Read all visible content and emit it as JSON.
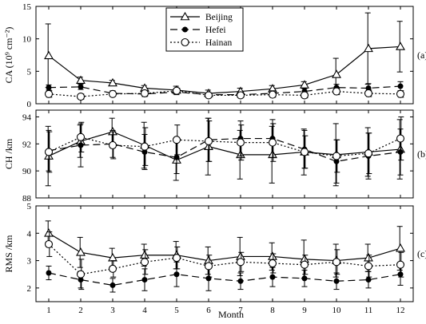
{
  "chart_data": {
    "type": "line",
    "xlabel": "Month",
    "x": [
      1,
      2,
      3,
      4,
      5,
      6,
      7,
      8,
      9,
      10,
      11,
      12
    ],
    "xlim": [
      0.6,
      12.4
    ],
    "legend": {
      "placement": "top-center",
      "entries": [
        "Beijing",
        "Hefei",
        "Hainan"
      ]
    },
    "colors": {
      "line": "#000000"
    },
    "panels": [
      {
        "panel_label": "(a)",
        "ylabel": "CA (10⁹ cm⁻²)",
        "ylim": [
          0,
          15
        ],
        "yticks": [
          0,
          5,
          10,
          15
        ],
        "series": [
          {
            "name": "Beijing",
            "values": [
              7.4,
              3.6,
              3.2,
              2.4,
              2.1,
              1.6,
              1.9,
              2.3,
              2.9,
              4.5,
              8.5,
              8.8
            ],
            "err": [
              4.9,
              0.5,
              0.4,
              0.4,
              0.6,
              0.5,
              0.5,
              0.5,
              0.5,
              2.5,
              5.5,
              3.9
            ]
          },
          {
            "name": "Hefei",
            "values": [
              2.5,
              2.6,
              1.6,
              1.5,
              1.8,
              1.4,
              1.4,
              1.6,
              1.9,
              2.5,
              2.4,
              2.7
            ],
            "err": [
              0.4,
              0.4,
              0.4,
              0.4,
              0.4,
              0.3,
              0.3,
              0.4,
              0.4,
              0.5,
              0.7,
              0.7
            ]
          },
          {
            "name": "Hainan",
            "values": [
              1.5,
              1.1,
              1.5,
              1.6,
              2.0,
              1.3,
              1.3,
              1.4,
              1.3,
              1.9,
              1.6,
              1.5
            ],
            "err": [
              0.5,
              0.4,
              0.3,
              0.4,
              0.4,
              0.3,
              0.3,
              0.4,
              0.4,
              0.5,
              0.5,
              0.5
            ]
          }
        ]
      },
      {
        "panel_label": "(b)",
        "ylabel": "CH /km",
        "ylim": [
          88,
          94.5
        ],
        "yticks": [
          88,
          90,
          92,
          94
        ],
        "series": [
          {
            "name": "Beijing",
            "values": [
              91.1,
              92.2,
              92.9,
              91.9,
              90.8,
              91.8,
              91.2,
              91.2,
              91.4,
              91.2,
              91.4,
              91.6
            ],
            "err": [
              2.2,
              1.2,
              1.0,
              1.7,
              1.5,
              2.1,
              1.8,
              2.1,
              1.7,
              2.3,
              1.8,
              2.2
            ]
          },
          {
            "name": "Hefei",
            "values": [
              91.5,
              91.9,
              92.0,
              91.4,
              91.0,
              92.3,
              92.4,
              92.4,
              91.6,
              90.7,
              91.1,
              91.4
            ],
            "err": [
              1.5,
              1.6,
              1.0,
              1.3,
              1.2,
              1.6,
              1.3,
              1.4,
              1.4,
              1.6,
              1.7,
              1.7
            ]
          },
          {
            "name": "Hainan",
            "values": [
              91.4,
              92.5,
              91.9,
              91.8,
              92.3,
              92.2,
              92.1,
              92.1,
              91.4,
              91.1,
              91.3,
              92.4
            ],
            "err": [
              1.5,
              1.1,
              1.0,
              1.4,
              1.1,
              1.5,
              1.3,
              1.4,
              1.2,
              1.2,
              1.5,
              1.6
            ]
          }
        ]
      },
      {
        "panel_label": "(c)",
        "ylabel": "RMS /km",
        "ylim": [
          1.5,
          5
        ],
        "yticks": [
          2,
          3,
          4,
          5
        ],
        "series": [
          {
            "name": "Beijing",
            "values": [
              4.0,
              3.3,
              3.1,
              3.2,
              3.2,
              3.0,
              3.15,
              3.15,
              3.05,
              3.0,
              3.1,
              3.45
            ],
            "err": [
              0.45,
              0.55,
              0.35,
              0.4,
              0.5,
              0.5,
              0.7,
              0.5,
              0.7,
              0.6,
              0.5,
              0.8
            ]
          },
          {
            "name": "Hefei",
            "values": [
              2.55,
              2.3,
              2.1,
              2.3,
              2.5,
              2.35,
              2.25,
              2.4,
              2.35,
              2.25,
              2.3,
              2.5
            ],
            "err": [
              0.25,
              0.3,
              0.25,
              0.4,
              0.45,
              0.45,
              0.3,
              0.35,
              0.3,
              0.3,
              0.3,
              0.4
            ]
          },
          {
            "name": "Hainan",
            "values": [
              3.6,
              2.5,
              2.7,
              2.95,
              3.1,
              2.8,
              2.95,
              2.9,
              2.85,
              2.95,
              2.8,
              2.85
            ],
            "err": [
              0.45,
              0.55,
              0.3,
              0.45,
              0.4,
              0.4,
              0.35,
              0.35,
              0.35,
              0.45,
              0.4,
              0.45
            ]
          }
        ]
      }
    ]
  }
}
